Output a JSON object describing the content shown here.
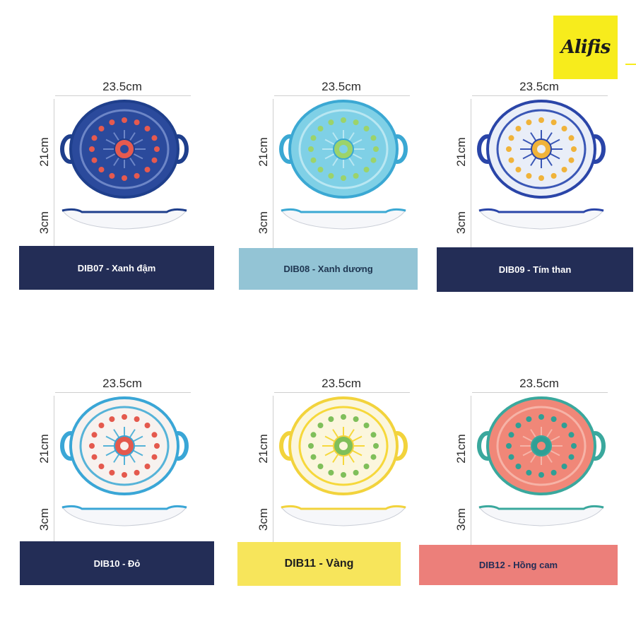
{
  "brand": {
    "logo_text": "Alifis"
  },
  "products": [
    {
      "width_label": "23.5cm",
      "height_label": "21cm",
      "depth_label": "3cm",
      "caption": "DIB07 - Xanh đậm",
      "caption_bg": "#232d56",
      "caption_color": "#ffffff",
      "rim": "#1f3f8c",
      "fill": "#2b4a9c",
      "accent": "#e65a4f",
      "inner": "#6d86c7"
    },
    {
      "width_label": "23.5cm",
      "height_label": "21cm",
      "depth_label": "3cm",
      "caption": "DIB08 - Xanh dương",
      "caption_bg": "#93c4d5",
      "caption_color": "#1e3550",
      "rim": "#3ba8d3",
      "fill": "#7fd0e6",
      "accent": "#9cd36a",
      "inner": "#b9e7f2"
    },
    {
      "width_label": "23.5cm",
      "height_label": "21cm",
      "depth_label": "3cm",
      "caption": "DIB09 - Tím than",
      "caption_bg": "#232d56",
      "caption_color": "#ffffff",
      "rim": "#2a45a8",
      "fill": "#e9eef8",
      "accent": "#f0b33a",
      "inner": "#3a57b6"
    },
    {
      "width_label": "23.5cm",
      "height_label": "21cm",
      "depth_label": "3cm",
      "caption": "DIB10 - Đỏ",
      "caption_bg": "#232d56",
      "caption_color": "#ffffff",
      "rim": "#3aa6d6",
      "fill": "#f7f2ef",
      "accent": "#e4594d",
      "inner": "#56b3d8"
    },
    {
      "width_label": "23.5cm",
      "height_label": "21cm",
      "depth_label": "3cm",
      "caption": "DIB11 - Vàng",
      "caption_bg": "#f7e55b",
      "caption_color": "#1e1e1e",
      "rim": "#f2d33c",
      "fill": "#fbf6dd",
      "accent": "#7fbf5a",
      "inner": "#f6d83b"
    },
    {
      "width_label": "23.5cm",
      "height_label": "21cm",
      "depth_label": "3cm",
      "caption": "DIB12 - Hồng cam",
      "caption_bg": "#ec7f7a",
      "caption_color": "#232d56",
      "rim": "#3aa89d",
      "fill": "#f08778",
      "accent": "#2f9f95",
      "inner": "#f6b3a7"
    }
  ]
}
